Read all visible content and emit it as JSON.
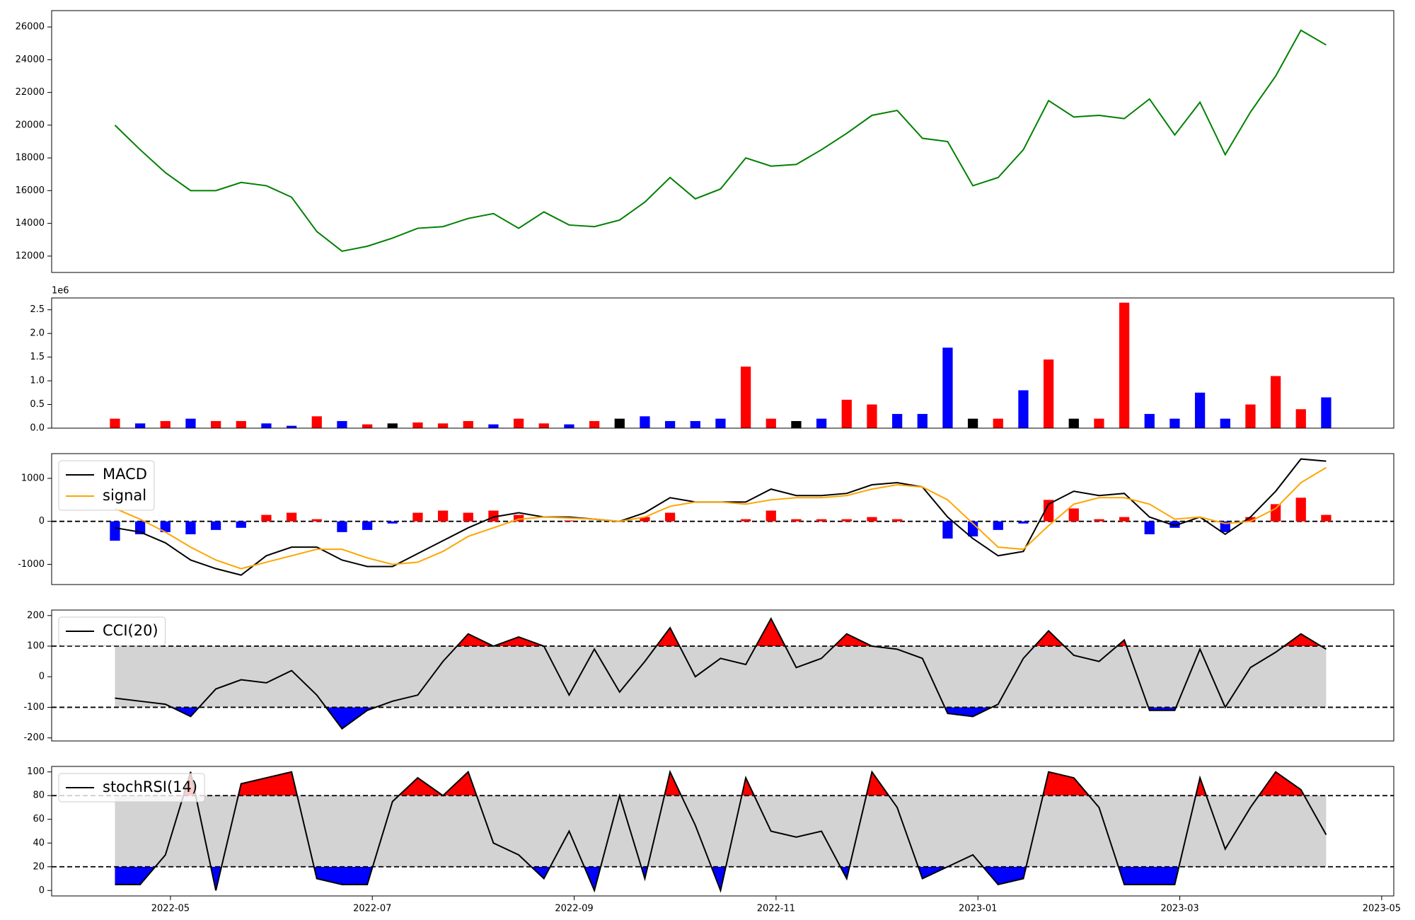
{
  "chart_data": [
    {
      "type": "line",
      "x": [
        0.45,
        0.7,
        0.95,
        1.2,
        1.45,
        1.7,
        1.95,
        2.2,
        2.45,
        2.7,
        2.95,
        3.2,
        3.45,
        3.7,
        3.95,
        4.2,
        4.45,
        4.7,
        4.95,
        5.2,
        5.45,
        5.7,
        5.95,
        6.2,
        6.45,
        6.7,
        6.95,
        7.2,
        7.45,
        7.7,
        7.95,
        8.2,
        8.45,
        8.7,
        8.95,
        9.2,
        9.45,
        9.7,
        9.95,
        10.2,
        10.45,
        10.7,
        10.95,
        11.2,
        11.45,
        11.7,
        11.95,
        12.2,
        12.45
      ],
      "xlim": [
        -0.177,
        13.12
      ],
      "ylim": [
        11000,
        27000
      ],
      "yticks": [
        12000,
        14000,
        16000,
        18000,
        20000,
        22000,
        24000,
        26000
      ],
      "series": [
        {
          "color": "green",
          "values": [
            20000,
            18500,
            17100,
            16000,
            16000,
            16500,
            16300,
            15600,
            13500,
            12300,
            12600,
            13100,
            13700,
            13800,
            14300,
            14600,
            13700,
            14700,
            13900,
            13800,
            14200,
            15300,
            16800,
            15500,
            16100,
            18000,
            17500,
            17600,
            18500,
            19500,
            20600,
            20900,
            19200,
            19000,
            16300,
            16800,
            18500,
            21500,
            20500,
            20600,
            20400,
            21600,
            19400,
            21400,
            18200,
            20800,
            23000,
            25800,
            24900
          ]
        }
      ]
    },
    {
      "type": "bar",
      "x": [
        0.45,
        0.7,
        0.95,
        1.2,
        1.45,
        1.7,
        1.95,
        2.2,
        2.45,
        2.7,
        2.95,
        3.2,
        3.45,
        3.7,
        3.95,
        4.2,
        4.45,
        4.7,
        4.95,
        5.2,
        5.45,
        5.7,
        5.95,
        6.2,
        6.45,
        6.7,
        6.95,
        7.2,
        7.45,
        7.7,
        7.95,
        8.2,
        8.45,
        8.7,
        8.95,
        9.2,
        9.45,
        9.7,
        9.95,
        10.2,
        10.45,
        10.7,
        10.95,
        11.2,
        11.45,
        11.7,
        11.95,
        12.2,
        12.45
      ],
      "xlim": [
        -0.177,
        13.12
      ],
      "ylim": [
        0,
        2.75
      ],
      "yticks": [
        {
          "value": 0,
          "label": "0.0"
        },
        0.5,
        {
          "value": 1,
          "label": "1.0"
        },
        1.5,
        {
          "value": 2,
          "label": "2.0"
        },
        2.5
      ],
      "y_offset_text": "1e6",
      "values": [
        0.2,
        0.1,
        0.15,
        0.2,
        0.15,
        0.15,
        0.1,
        0.05,
        0.25,
        0.15,
        0.08,
        0.1,
        0.12,
        0.1,
        0.15,
        0.08,
        0.2,
        0.1,
        0.08,
        0.15,
        0.2,
        0.25,
        0.15,
        0.15,
        0.2,
        1.3,
        0.2,
        0.15,
        0.2,
        0.6,
        0.5,
        0.3,
        0.3,
        1.7,
        0.2,
        0.2,
        0.8,
        1.45,
        0.2,
        0.2,
        2.65,
        0.3,
        0.2,
        0.75,
        0.2,
        0.5,
        1.1,
        0.4,
        0.65
      ],
      "colors": [
        "red",
        "blue",
        "red",
        "blue",
        "red",
        "red",
        "blue",
        "blue",
        "red",
        "blue",
        "red",
        "black",
        "red",
        "red",
        "red",
        "blue",
        "red",
        "red",
        "blue",
        "red",
        "black",
        "blue",
        "blue",
        "blue",
        "blue",
        "red",
        "red",
        "black",
        "blue",
        "red",
        "red",
        "blue",
        "blue",
        "blue",
        "black",
        "red",
        "blue",
        "red",
        "black",
        "red",
        "red",
        "blue",
        "blue",
        "blue",
        "blue",
        "red",
        "red",
        "red",
        "blue"
      ]
    },
    {
      "type": "line",
      "x": [
        0.45,
        0.7,
        0.95,
        1.2,
        1.45,
        1.7,
        1.95,
        2.2,
        2.45,
        2.7,
        2.95,
        3.2,
        3.45,
        3.7,
        3.95,
        4.2,
        4.45,
        4.7,
        4.95,
        5.2,
        5.45,
        5.7,
        5.95,
        6.2,
        6.45,
        6.7,
        6.95,
        7.2,
        7.45,
        7.7,
        7.95,
        8.2,
        8.45,
        8.7,
        8.95,
        9.2,
        9.45,
        9.7,
        9.95,
        10.2,
        10.45,
        10.7,
        10.95,
        11.2,
        11.45,
        11.7,
        11.95,
        12.2,
        12.45
      ],
      "xlim": [
        -0.177,
        13.12
      ],
      "ylim": [
        -1470,
        1575
      ],
      "yticks": [
        -1000,
        0,
        1000
      ],
      "levels": [
        0
      ],
      "legend": "upper left",
      "series": [
        {
          "name": "MACD",
          "color": "black",
          "values": [
            -150,
            -250,
            -500,
            -900,
            -1100,
            -1250,
            -800,
            -600,
            -600,
            -900,
            -1050,
            -1050,
            -750,
            -450,
            -150,
            100,
            200,
            100,
            100,
            50,
            0,
            200,
            550,
            450,
            450,
            450,
            750,
            600,
            600,
            650,
            850,
            900,
            800,
            100,
            -400,
            -800,
            -700,
            400,
            700,
            600,
            650,
            100,
            -100,
            100,
            -300,
            100,
            700,
            1450,
            1400
          ]
        },
        {
          "name": "signal",
          "color": "orange",
          "values": [
            300,
            50,
            -250,
            -600,
            -900,
            -1100,
            -950,
            -800,
            -650,
            -650,
            -850,
            -1000,
            -950,
            -700,
            -350,
            -150,
            50,
            100,
            80,
            50,
            0,
            100,
            350,
            450,
            450,
            400,
            500,
            550,
            550,
            600,
            750,
            850,
            800,
            500,
            -50,
            -600,
            -650,
            -100,
            400,
            550,
            550,
            400,
            50,
            100,
            -50,
            0,
            300,
            900,
            1250
          ]
        }
      ],
      "histogram": {
        "colors": [
          "red",
          "blue"
        ],
        "values": [
          -450,
          -300,
          -250,
          -300,
          -200,
          -150,
          150,
          200,
          50,
          -250,
          -200,
          -50,
          200,
          250,
          200,
          250,
          150,
          0,
          20,
          0,
          0,
          100,
          200,
          0,
          0,
          50,
          250,
          50,
          50,
          50,
          100,
          50,
          0,
          -400,
          -350,
          -200,
          -50,
          500,
          300,
          50,
          100,
          -300,
          -150,
          0,
          -250,
          100,
          400,
          550,
          150
        ]
      }
    },
    {
      "type": "line",
      "x": [
        0.45,
        0.7,
        0.95,
        1.2,
        1.45,
        1.7,
        1.95,
        2.2,
        2.45,
        2.7,
        2.95,
        3.2,
        3.45,
        3.7,
        3.95,
        4.2,
        4.45,
        4.7,
        4.95,
        5.2,
        5.45,
        5.7,
        5.95,
        6.2,
        6.45,
        6.7,
        6.95,
        7.2,
        7.45,
        7.7,
        7.95,
        8.2,
        8.45,
        8.7,
        8.95,
        9.2,
        9.45,
        9.7,
        9.95,
        10.2,
        10.45,
        10.7,
        10.95,
        11.2,
        11.45,
        11.7,
        11.95,
        12.2,
        12.45
      ],
      "xlim": [
        -0.177,
        13.12
      ],
      "ylim": [
        -210,
        218
      ],
      "yticks": [
        -200,
        -100,
        0,
        100,
        200
      ],
      "levels": [
        -100,
        100
      ],
      "fill": {
        "band": "lightgray",
        "above": "red",
        "below": "blue"
      },
      "legend": "upper left",
      "series": [
        {
          "name": "CCI(20)",
          "color": "black",
          "values": [
            -70,
            -80,
            -90,
            -130,
            -40,
            -10,
            -20,
            20,
            -60,
            -170,
            -110,
            -80,
            -60,
            50,
            140,
            100,
            130,
            100,
            -60,
            90,
            -50,
            50,
            160,
            0,
            60,
            40,
            190,
            30,
            60,
            140,
            100,
            90,
            60,
            -120,
            -130,
            -90,
            60,
            150,
            70,
            50,
            120,
            -110,
            -110,
            90,
            -100,
            30,
            80,
            140,
            90
          ]
        }
      ]
    },
    {
      "type": "line",
      "x": [
        0.45,
        0.7,
        0.95,
        1.2,
        1.45,
        1.7,
        1.95,
        2.2,
        2.45,
        2.7,
        2.95,
        3.2,
        3.45,
        3.7,
        3.95,
        4.2,
        4.45,
        4.7,
        4.95,
        5.2,
        5.45,
        5.7,
        5.95,
        6.2,
        6.45,
        6.7,
        6.95,
        7.2,
        7.45,
        7.7,
        7.95,
        8.2,
        8.45,
        8.7,
        8.95,
        9.2,
        9.45,
        9.7,
        9.95,
        10.2,
        10.45,
        10.7,
        10.95,
        11.2,
        11.45,
        11.7,
        11.95,
        12.2,
        12.45
      ],
      "xlim": [
        -0.177,
        13.12
      ],
      "xticks": [
        {
          "value": 1,
          "label": "2022-05"
        },
        {
          "value": 3,
          "label": "2022-07"
        },
        {
          "value": 5,
          "label": "2022-09"
        },
        {
          "value": 7,
          "label": "2022-11"
        },
        {
          "value": 9,
          "label": "2023-01"
        },
        {
          "value": 11,
          "label": "2023-03"
        },
        {
          "value": 13,
          "label": "2023-05"
        }
      ],
      "ylim": [
        -4.6,
        104.6
      ],
      "yticks": [
        0,
        20,
        40,
        60,
        80,
        100
      ],
      "levels": [
        20,
        80
      ],
      "fill": {
        "band": "lightgray",
        "above": "red",
        "below": "blue"
      },
      "legend": "upper left",
      "series": [
        {
          "name": "stochRSI(14)",
          "color": "black",
          "values": [
            5,
            5,
            30,
            100,
            0,
            90,
            95,
            100,
            10,
            5,
            5,
            75,
            95,
            80,
            100,
            40,
            30,
            10,
            50,
            0,
            80,
            10,
            100,
            55,
            0,
            95,
            50,
            45,
            50,
            10,
            100,
            70,
            10,
            20,
            30,
            5,
            10,
            100,
            95,
            70,
            5,
            5,
            5,
            95,
            35,
            70,
            100,
            85,
            47
          ]
        }
      ]
    }
  ]
}
